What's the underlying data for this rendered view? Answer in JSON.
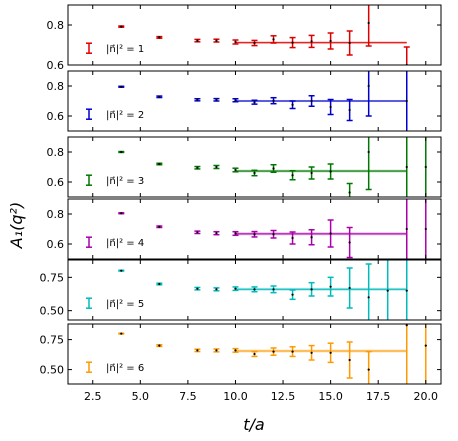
{
  "chart_data": {
    "type": "errorbar-multipanel",
    "xlabel": "t/a",
    "ylabel": "A₁(q²)",
    "xlim": [
      1.2,
      20.8
    ],
    "xticks": [
      2.5,
      5.0,
      7.5,
      10.0,
      12.5,
      15.0,
      17.5,
      20.0
    ],
    "xtick_labels": [
      "2.5",
      "5.0",
      "7.5",
      "10.0",
      "12.5",
      "15.0",
      "17.5",
      "20.0"
    ],
    "grid": false,
    "panels": [
      {
        "name": "|n⃗|² = 1",
        "color": "#dd0000",
        "ylim": [
          0.6,
          0.9
        ],
        "yticks": [
          0.6,
          0.8
        ],
        "ytick_labels": [
          "0.6",
          "0.8"
        ],
        "fit": {
          "x": [
            10,
            19
          ],
          "y": 0.712,
          "err": 0.006
        },
        "points": [
          {
            "t": 4,
            "y": 0.792,
            "err": 0.003
          },
          {
            "t": 6,
            "y": 0.738,
            "err": 0.004
          },
          {
            "t": 8,
            "y": 0.722,
            "err": 0.006
          },
          {
            "t": 9,
            "y": 0.722,
            "err": 0.007
          },
          {
            "t": 10,
            "y": 0.715,
            "err": 0.01
          },
          {
            "t": 11,
            "y": 0.71,
            "err": 0.013
          },
          {
            "t": 12,
            "y": 0.728,
            "err": 0.018
          },
          {
            "t": 13,
            "y": 0.712,
            "err": 0.025
          },
          {
            "t": 14,
            "y": 0.718,
            "err": 0.03
          },
          {
            "t": 15,
            "y": 0.72,
            "err": 0.04
          },
          {
            "t": 16,
            "y": 0.71,
            "err": 0.06
          },
          {
            "t": 17,
            "y": 0.81,
            "err": 0.115
          },
          {
            "t": 19,
            "y": 0.6,
            "err": 0.09
          }
        ]
      },
      {
        "name": "|n⃗|² = 2",
        "color": "#0000cc",
        "ylim": [
          0.5,
          0.9
        ],
        "yticks": [
          0.6,
          0.8
        ],
        "ytick_labels": [
          "0.6",
          "0.8"
        ],
        "fit": {
          "x": [
            10,
            19
          ],
          "y": 0.7,
          "err": 0.007
        },
        "points": [
          {
            "t": 4,
            "y": 0.795,
            "err": 0.003
          },
          {
            "t": 6,
            "y": 0.728,
            "err": 0.005
          },
          {
            "t": 8,
            "y": 0.708,
            "err": 0.007
          },
          {
            "t": 9,
            "y": 0.708,
            "err": 0.008
          },
          {
            "t": 10,
            "y": 0.705,
            "err": 0.01
          },
          {
            "t": 11,
            "y": 0.692,
            "err": 0.013
          },
          {
            "t": 12,
            "y": 0.702,
            "err": 0.02
          },
          {
            "t": 13,
            "y": 0.675,
            "err": 0.025
          },
          {
            "t": 14,
            "y": 0.7,
            "err": 0.035
          },
          {
            "t": 15,
            "y": 0.66,
            "err": 0.05
          },
          {
            "t": 16,
            "y": 0.64,
            "err": 0.07
          },
          {
            "t": 17,
            "y": 0.8,
            "err": 0.2
          },
          {
            "t": 19,
            "y": 0.7,
            "err": 0.3
          }
        ]
      },
      {
        "name": "|n⃗|² = 3",
        "color": "#007700",
        "ylim": [
          0.5,
          0.9
        ],
        "yticks": [
          0.6,
          0.8
        ],
        "ytick_labels": [
          "0.6",
          "0.8"
        ],
        "fit": {
          "x": [
            10,
            19
          ],
          "y": 0.673,
          "err": 0.009
        },
        "points": [
          {
            "t": 4,
            "y": 0.8,
            "err": 0.003
          },
          {
            "t": 6,
            "y": 0.72,
            "err": 0.005
          },
          {
            "t": 8,
            "y": 0.695,
            "err": 0.008
          },
          {
            "t": 9,
            "y": 0.7,
            "err": 0.01
          },
          {
            "t": 10,
            "y": 0.68,
            "err": 0.012
          },
          {
            "t": 11,
            "y": 0.66,
            "err": 0.018
          },
          {
            "t": 12,
            "y": 0.69,
            "err": 0.025
          },
          {
            "t": 13,
            "y": 0.645,
            "err": 0.03
          },
          {
            "t": 14,
            "y": 0.66,
            "err": 0.04
          },
          {
            "t": 15,
            "y": 0.67,
            "err": 0.05
          },
          {
            "t": 16,
            "y": 0.53,
            "err": 0.06
          },
          {
            "t": 17,
            "y": 0.8,
            "err": 0.25
          },
          {
            "t": 19,
            "y": 0.7,
            "err": 0.35
          },
          {
            "t": 20,
            "y": 0.7,
            "err": 0.35
          }
        ]
      },
      {
        "name": "|n⃗|² = 4",
        "color": "#aa00aa",
        "ylim": [
          0.5,
          0.9
        ],
        "yticks": [
          0.6,
          0.8
        ],
        "ytick_labels": [
          "0.6",
          "0.8"
        ],
        "fit": {
          "x": [
            10,
            19
          ],
          "y": 0.668,
          "err": 0.01
        },
        "points": [
          {
            "t": 4,
            "y": 0.805,
            "err": 0.003
          },
          {
            "t": 6,
            "y": 0.715,
            "err": 0.005
          },
          {
            "t": 8,
            "y": 0.678,
            "err": 0.008
          },
          {
            "t": 9,
            "y": 0.672,
            "err": 0.01
          },
          {
            "t": 10,
            "y": 0.67,
            "err": 0.012
          },
          {
            "t": 11,
            "y": 0.665,
            "err": 0.018
          },
          {
            "t": 12,
            "y": 0.665,
            "err": 0.025
          },
          {
            "t": 13,
            "y": 0.64,
            "err": 0.04
          },
          {
            "t": 14,
            "y": 0.645,
            "err": 0.05
          },
          {
            "t": 15,
            "y": 0.67,
            "err": 0.09
          },
          {
            "t": 16,
            "y": 0.61,
            "err": 0.1
          },
          {
            "t": 19,
            "y": 0.7,
            "err": 0.35
          },
          {
            "t": 20,
            "y": 0.7,
            "err": 0.35
          }
        ]
      },
      {
        "name": "|n⃗|² = 5",
        "color": "#00bbbb",
        "ylim": [
          0.43,
          0.88
        ],
        "yticks": [
          0.5,
          0.75
        ],
        "ytick_labels": [
          "0.50",
          "0.75"
        ],
        "fit": {
          "x": [
            10,
            19
          ],
          "y": 0.66,
          "err": 0.011
        },
        "points": [
          {
            "t": 4,
            "y": 0.8,
            "err": 0.003
          },
          {
            "t": 6,
            "y": 0.7,
            "err": 0.006
          },
          {
            "t": 8,
            "y": 0.665,
            "err": 0.009
          },
          {
            "t": 9,
            "y": 0.66,
            "err": 0.011
          },
          {
            "t": 10,
            "y": 0.665,
            "err": 0.013
          },
          {
            "t": 11,
            "y": 0.66,
            "err": 0.018
          },
          {
            "t": 12,
            "y": 0.66,
            "err": 0.025
          },
          {
            "t": 13,
            "y": 0.62,
            "err": 0.035
          },
          {
            "t": 14,
            "y": 0.66,
            "err": 0.05
          },
          {
            "t": 15,
            "y": 0.68,
            "err": 0.07
          },
          {
            "t": 16,
            "y": 0.67,
            "err": 0.15
          },
          {
            "t": 17,
            "y": 0.6,
            "err": 0.25
          },
          {
            "t": 18,
            "y": 0.65,
            "err": 0.35
          },
          {
            "t": 19,
            "y": 0.65,
            "err": 0.35
          }
        ]
      },
      {
        "name": "|n⃗|² = 6",
        "color": "#ff9900",
        "ylim": [
          0.38,
          0.88
        ],
        "yticks": [
          0.5,
          0.75
        ],
        "ytick_labels": [
          "0.50",
          "0.75"
        ],
        "fit": {
          "x": [
            10,
            19
          ],
          "y": 0.655,
          "err": 0.012
        },
        "points": [
          {
            "t": 4,
            "y": 0.8,
            "err": 0.003
          },
          {
            "t": 6,
            "y": 0.7,
            "err": 0.007
          },
          {
            "t": 8,
            "y": 0.66,
            "err": 0.01
          },
          {
            "t": 9,
            "y": 0.66,
            "err": 0.012
          },
          {
            "t": 10,
            "y": 0.66,
            "err": 0.015
          },
          {
            "t": 11,
            "y": 0.63,
            "err": 0.02
          },
          {
            "t": 12,
            "y": 0.65,
            "err": 0.03
          },
          {
            "t": 13,
            "y": 0.65,
            "err": 0.04
          },
          {
            "t": 14,
            "y": 0.64,
            "err": 0.06
          },
          {
            "t": 15,
            "y": 0.64,
            "err": 0.08
          },
          {
            "t": 16,
            "y": 0.58,
            "err": 0.15
          },
          {
            "t": 17,
            "y": 0.5,
            "err": 0.15
          },
          {
            "t": 19,
            "y": 0.87,
            "err": 0.5
          },
          {
            "t": 20,
            "y": 0.7,
            "err": 0.5
          }
        ]
      }
    ]
  }
}
